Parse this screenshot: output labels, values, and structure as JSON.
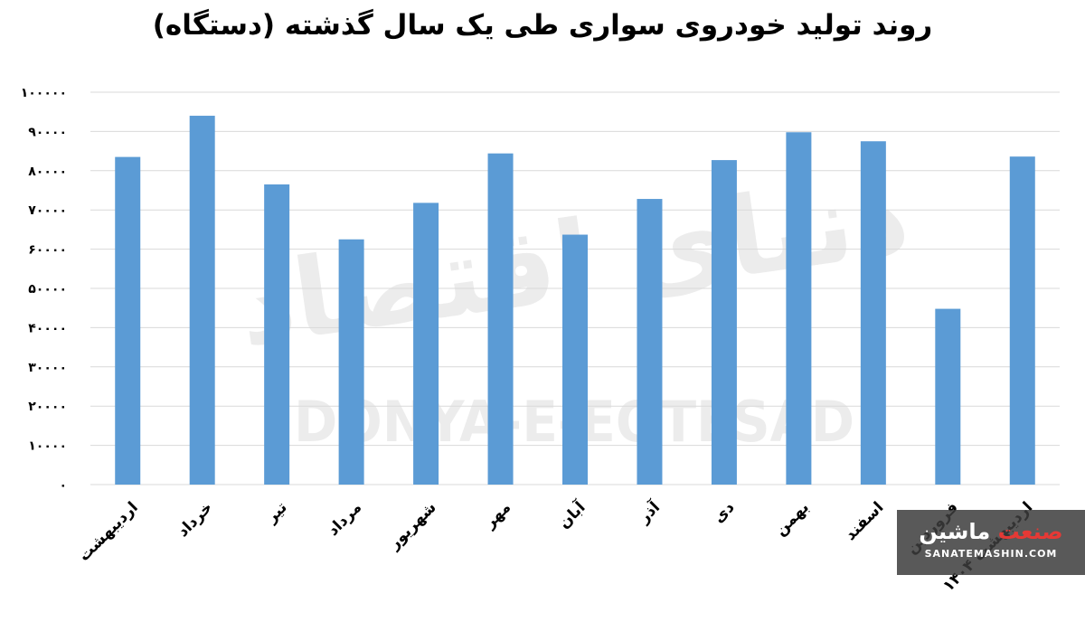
{
  "chart_data": {
    "type": "bar",
    "title": "روند تولید خودروی سواری طی یک سال گذشته (دستگاه)",
    "categories": [
      "اردیبهشت",
      "خرداد",
      "تیر",
      "مرداد",
      "شهریور",
      "مهر",
      "آبان",
      "آذر",
      "دی",
      "بهمن",
      "اسفند",
      "فروردین",
      "اردیبهشت ۱۴۰۴"
    ],
    "values": [
      83500,
      94000,
      76500,
      62500,
      71800,
      84400,
      63700,
      72800,
      82700,
      89800,
      87500,
      44800,
      83600
    ],
    "ylim": [
      0,
      100000
    ],
    "yticks": [
      0,
      10000,
      20000,
      30000,
      40000,
      50000,
      60000,
      70000,
      80000,
      90000,
      100000
    ],
    "ytick_labels": [
      "۰",
      "۱۰۰۰۰",
      "۲۰۰۰۰",
      "۳۰۰۰۰",
      "۴۰۰۰۰",
      "۵۰۰۰۰",
      "۶۰۰۰۰",
      "۷۰۰۰۰",
      "۸۰۰۰۰",
      "۹۰۰۰۰",
      "۱۰۰۰۰۰"
    ],
    "grid": true,
    "bar_color": "#5b9bd5",
    "grid_color": "#d9d9d9"
  },
  "watermark": {
    "latin": "DONYA-E-EQTESAD",
    "persian": "دنیای اقتصاد"
  },
  "brand": {
    "name_part1": "صنعت",
    "name_part2": "ماشین",
    "url": "SANATEMASHIN.COM"
  }
}
